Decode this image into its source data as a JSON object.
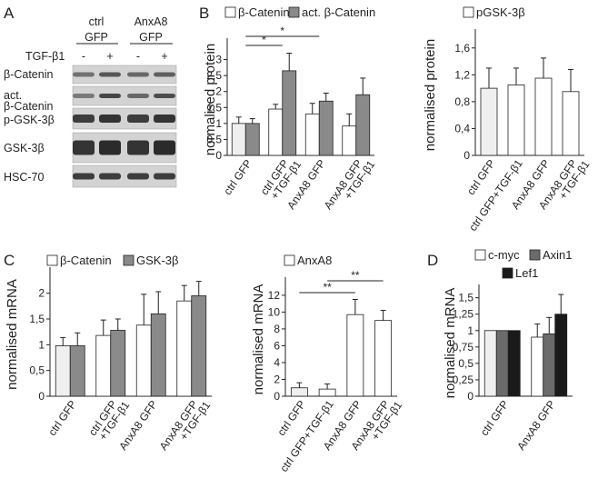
{
  "colors": {
    "white_bar": "#ffffff",
    "grey_bar": "#8a8a8a",
    "dark_grey_bar": "#6b6b6b",
    "black_bar": "#1a1a1a",
    "light_grey_bar": "#efefef",
    "axis": "#231f20"
  },
  "panels": {
    "A": "A",
    "B": "B",
    "C": "C",
    "D": "D"
  },
  "blot": {
    "groups": [
      "ctrl\nGFP",
      "AnxA8\nGFP"
    ],
    "treatment_label": "TGF-β1",
    "lanes": [
      "-",
      "+",
      "-",
      "+"
    ],
    "rows": [
      "β-Catenin",
      "act.\nβ-Catenin",
      "p-GSK-3β",
      "GSK-3β",
      "HSC-70"
    ]
  },
  "chart_data": [
    {
      "id": "B-left",
      "type": "bar",
      "ylabel": "normalised protein",
      "ylim": [
        0,
        3.5
      ],
      "yticks": [
        0,
        0.5,
        1,
        1.5,
        2,
        2.5,
        3
      ],
      "ytick_labels": [
        "0",
        "0,5",
        "1",
        "1,5",
        "2",
        "2,5",
        "3"
      ],
      "categories": [
        "ctrl GFP",
        "ctrl GFP\n+TGF-β1",
        "AnxA8 GFP",
        "AnxA8 GFP\n+TGF-β1"
      ],
      "series": [
        {
          "name": "β-Catenin",
          "values": [
            1.0,
            1.45,
            1.3,
            0.92
          ],
          "errors": [
            0.2,
            0.15,
            0.33,
            0.38
          ]
        },
        {
          "name": "act. β-Catenin",
          "values": [
            1.0,
            2.65,
            1.7,
            1.9
          ],
          "errors": [
            0.15,
            0.55,
            0.25,
            0.52
          ]
        }
      ],
      "significance": [
        {
          "from": 0,
          "to": 1,
          "label": "*"
        },
        {
          "from": 0,
          "to": 2,
          "label": "*"
        }
      ]
    },
    {
      "id": "B-right",
      "type": "bar",
      "ylabel": "normalised protein",
      "ylim": [
        0,
        1.8
      ],
      "yticks": [
        0,
        0.4,
        0.8,
        1.2,
        1.6
      ],
      "ytick_labels": [
        "0",
        "0,4",
        "0,8",
        "1,2",
        "1,6"
      ],
      "categories": [
        "ctrl GFP",
        "ctrl GFP+TGF-β1",
        "AnxA8 GFP",
        "AnxA8 GFP\n+TGF-β1"
      ],
      "series": [
        {
          "name": "pGSK-3β",
          "values": [
            1.0,
            1.05,
            1.15,
            0.95
          ],
          "errors": [
            0.3,
            0.25,
            0.3,
            0.33
          ]
        }
      ],
      "significance": []
    },
    {
      "id": "C-left",
      "type": "bar",
      "ylabel": "normalised mRNA",
      "ylim": [
        0,
        2.4
      ],
      "yticks": [
        0,
        0.5,
        1,
        1.5,
        2
      ],
      "ytick_labels": [
        "0",
        "0,5",
        "1",
        "1,5",
        "2"
      ],
      "categories": [
        "ctrl GFP",
        "ctrl GFP\n+TGF-β1",
        "AnxA8 GFP",
        "AnxA8 GFP\n+TGF-β1"
      ],
      "series": [
        {
          "name": "β-Catenin",
          "values": [
            0.98,
            1.18,
            1.38,
            1.85
          ],
          "errors": [
            0.16,
            0.3,
            0.6,
            0.3
          ]
        },
        {
          "name": "GSK-3β",
          "values": [
            0.98,
            1.28,
            1.6,
            1.95
          ],
          "errors": [
            0.25,
            0.22,
            0.43,
            0.28
          ]
        }
      ],
      "significance": []
    },
    {
      "id": "C-right",
      "type": "bar",
      "ylabel": "normalised mRNA",
      "ylim": [
        0,
        13.5
      ],
      "yticks": [
        0,
        2,
        4,
        6,
        8,
        10,
        12
      ],
      "ytick_labels": [
        "0",
        "2",
        "4",
        "6",
        "8",
        "10",
        "12"
      ],
      "categories": [
        "ctrl GFP",
        "ctrl GFP+TGF-β1",
        "AnxA8 GFP",
        "AnxA8 GFP\n+TGF-β1"
      ],
      "series": [
        {
          "name": "AnxA8",
          "values": [
            1.0,
            0.85,
            9.7,
            9.0
          ],
          "errors": [
            0.6,
            0.6,
            1.8,
            1.2
          ]
        }
      ],
      "significance": [
        {
          "from": 0,
          "to": 2,
          "label": "**"
        },
        {
          "from": 1,
          "to": 3,
          "label": "**"
        }
      ]
    },
    {
      "id": "D",
      "type": "bar",
      "ylabel": "normalised mRNA",
      "ylim": [
        0,
        1.62
      ],
      "yticks": [
        0,
        0.25,
        0.5,
        0.75,
        1,
        1.25,
        1.5
      ],
      "ytick_labels": [
        "0",
        "0,25",
        "0,5",
        "0,75",
        "1",
        "1,25",
        "1,5"
      ],
      "categories": [
        "ctrl GFP",
        "AnxA8 GFP"
      ],
      "series": [
        {
          "name": "c-myc",
          "values": [
            1.0,
            0.9
          ],
          "errors": [
            0.01,
            0.2
          ]
        },
        {
          "name": "Axin1",
          "values": [
            1.0,
            0.95
          ],
          "errors": [
            0.01,
            0.25
          ]
        },
        {
          "name": "Lef1",
          "values": [
            1.0,
            1.25
          ],
          "errors": [
            0.01,
            0.3
          ]
        }
      ],
      "significance": []
    }
  ]
}
